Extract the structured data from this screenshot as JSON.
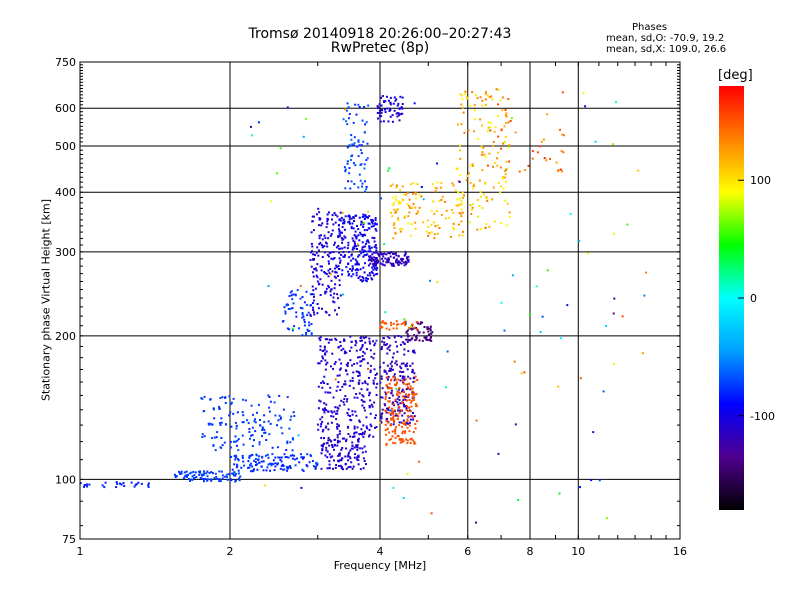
{
  "title_line1": "Tromsø 20140918 20:26:00–20:27:43",
  "title_line2": "RwPretec (8p)",
  "stats": {
    "heading": "Phases",
    "o_mode": "mean, sd,O: -70.9, 19.2",
    "x_mode": "mean, sd,X: 109.0, 26.6"
  },
  "colorbar": {
    "unit": "[deg]",
    "ticks": [
      "100",
      "0",
      "-100"
    ],
    "tick_values": [
      100,
      0,
      -100
    ],
    "range": [
      -180,
      180
    ],
    "palette": [
      "#000000",
      "#500090",
      "#0000ff",
      "#00a0ff",
      "#00ffff",
      "#00ff00",
      "#ffff00",
      "#ff8000",
      "#ff0000"
    ]
  },
  "chart_data": {
    "type": "scatter",
    "xlabel": "Frequency [MHz]",
    "ylabel": "Stationary phase Virtual Height [km]",
    "x_scale": "log",
    "y_scale": "log",
    "xlim": [
      1,
      16
    ],
    "ylim": [
      75,
      750
    ],
    "x_ticks": [
      "1",
      "2",
      "4",
      "6",
      "8",
      "10",
      "16"
    ],
    "x_tick_values": [
      1,
      2,
      4,
      6,
      8,
      10,
      16
    ],
    "y_ticks": [
      "75",
      "100",
      "200",
      "300",
      "400",
      "500",
      "600",
      "750"
    ],
    "y_tick_values": [
      75,
      100,
      200,
      300,
      400,
      500,
      600,
      750
    ],
    "grid": true,
    "traces": [
      {
        "f": [
          1.0,
          1.38
        ],
        "h": [
          96,
          99
        ],
        "phase": [
          -85,
          -80
        ],
        "n": 26
      },
      {
        "f": [
          1.55,
          2.1
        ],
        "h": [
          99,
          104
        ],
        "phase": [
          -78,
          -68
        ],
        "n": 90
      },
      {
        "f": [
          2.0,
          3.0
        ],
        "h": [
          104,
          113
        ],
        "phase": [
          -85,
          -70
        ],
        "n": 130
      },
      {
        "f": [
          1.75,
          2.7
        ],
        "h": [
          115,
          150
        ],
        "phase": [
          -80,
          -68
        ],
        "n": 140
      },
      {
        "f": [
          2.55,
          2.95
        ],
        "h": [
          200,
          250
        ],
        "phase": [
          -82,
          -70
        ],
        "n": 60
      },
      {
        "f": [
          2.9,
          3.35
        ],
        "h": [
          220,
          370
        ],
        "phase": [
          -115,
          -95
        ],
        "n": 170
      },
      {
        "f": [
          3.05,
          3.75
        ],
        "h": [
          105,
          122
        ],
        "phase": [
          -118,
          -100
        ],
        "n": 120
      },
      {
        "f": [
          3.0,
          3.95
        ],
        "h": [
          122,
          200
        ],
        "phase": [
          -118,
          -98
        ],
        "n": 290
      },
      {
        "f": [
          3.3,
          3.95
        ],
        "h": [
          260,
          360
        ],
        "phase": [
          -110,
          -85
        ],
        "n": 230
      },
      {
        "f": [
          3.8,
          4.6
        ],
        "h": [
          280,
          300
        ],
        "phase": [
          -125,
          -110
        ],
        "n": 110
      },
      {
        "f": [
          4.0,
          4.7
        ],
        "h": [
          130,
          200
        ],
        "phase": [
          -125,
          -105
        ],
        "n": 200
      },
      {
        "f": [
          4.1,
          4.75
        ],
        "h": [
          118,
          165
        ],
        "phase": [
          145,
          160
        ],
        "n": 170
      },
      {
        "f": [
          4.5,
          5.1
        ],
        "h": [
          195,
          215
        ],
        "phase": [
          -150,
          -135
        ],
        "n": 60
      },
      {
        "f": [
          4.0,
          4.75
        ],
        "h": [
          205,
          215
        ],
        "phase": [
          140,
          155
        ],
        "n": 30
      },
      {
        "f": [
          3.4,
          3.8
        ],
        "h": [
          400,
          620
        ],
        "phase": [
          -85,
          -60
        ],
        "n": 70
      },
      {
        "f": [
          3.95,
          4.45
        ],
        "h": [
          560,
          640
        ],
        "phase": [
          -115,
          -95
        ],
        "n": 60
      },
      {
        "f": [
          4.2,
          5.9
        ],
        "h": [
          320,
          420
        ],
        "phase": [
          90,
          140
        ],
        "n": 130
      },
      {
        "f": [
          5.7,
          7.3
        ],
        "h": [
          330,
          660
        ],
        "phase": [
          80,
          140
        ],
        "n": 140
      },
      {
        "f": [
          6.5,
          9.5
        ],
        "h": [
          440,
          660
        ],
        "phase": [
          120,
          165
        ],
        "n": 40
      },
      {
        "f": [
          2.1,
          14.0
        ],
        "h": [
          80,
          660
        ],
        "phase": [
          -140,
          160
        ],
        "n": 110
      }
    ]
  }
}
